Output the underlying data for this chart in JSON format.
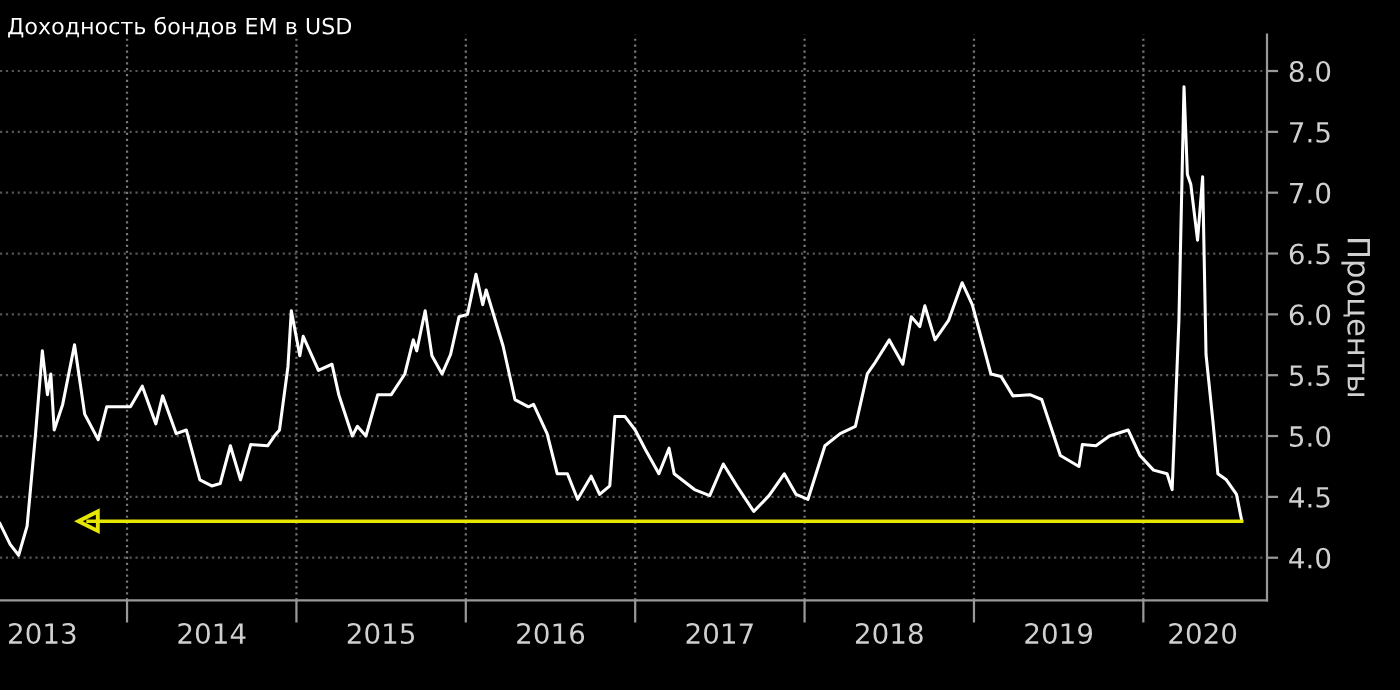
{
  "chart_data": {
    "type": "line",
    "title": "Доходность бондов EM в USD",
    "ylabel": "Проценты",
    "xlim": [
      2013.25,
      2020.73
    ],
    "ylim": [
      3.65,
      8.3
    ],
    "xticks": [
      {
        "value": 2013.5,
        "label": "2013"
      },
      {
        "value": 2014,
        "label": null
      },
      {
        "value": 2014.5,
        "label": "2014"
      },
      {
        "value": 2015,
        "label": null
      },
      {
        "value": 2015.5,
        "label": "2015"
      },
      {
        "value": 2016,
        "label": null
      },
      {
        "value": 2016.5,
        "label": "2016"
      },
      {
        "value": 2017,
        "label": null
      },
      {
        "value": 2017.5,
        "label": "2017"
      },
      {
        "value": 2018,
        "label": null
      },
      {
        "value": 2018.5,
        "label": "2018"
      },
      {
        "value": 2019,
        "label": null
      },
      {
        "value": 2019.5,
        "label": "2019"
      },
      {
        "value": 2020,
        "label": null
      },
      {
        "value": 2020.35,
        "label": "2020"
      }
    ],
    "yticks": [
      {
        "value": 4,
        "label": "4.0"
      },
      {
        "value": 4.5,
        "label": "4.5"
      },
      {
        "value": 5,
        "label": "5.0"
      },
      {
        "value": 5.5,
        "label": "5.5"
      },
      {
        "value": 6,
        "label": "6.0"
      },
      {
        "value": 6.5,
        "label": "6.5"
      },
      {
        "value": 7,
        "label": "7.0"
      },
      {
        "value": 7.5,
        "label": "7.5"
      },
      {
        "value": 8,
        "label": "8.0"
      }
    ],
    "grid": true,
    "series": [
      {
        "color": "#ffffff",
        "x": [
          2013.25,
          2013.31,
          2013.36,
          2013.41,
          2013.46,
          2013.5,
          2013.53,
          2013.55,
          2013.57,
          2013.62,
          2013.69,
          2013.75,
          2013.83,
          2013.88,
          2014.02,
          2014.09,
          2014.17,
          2014.21,
          2014.29,
          2014.35,
          2014.43,
          2014.5,
          2014.55,
          2014.61,
          2014.67,
          2014.73,
          2014.83,
          2014.87,
          2014.9,
          2014.95,
          2014.97,
          2015.02,
          2015.04,
          2015.13,
          2015.21,
          2015.25,
          2015.33,
          2015.36,
          2015.41,
          2015.48,
          2015.56,
          2015.64,
          2015.69,
          2015.71,
          2015.76,
          2015.8,
          2015.86,
          2015.91,
          2015.96,
          2016.01,
          2016.06,
          2016.1,
          2016.12,
          2016.22,
          2016.29,
          2016.37,
          2016.4,
          2016.48,
          2016.54,
          2016.6,
          2016.66,
          2016.74,
          2016.79,
          2016.85,
          2016.88,
          2016.94,
          2017.0,
          2017.06,
          2017.14,
          2017.2,
          2017.23,
          2017.35,
          2017.44,
          2017.52,
          2017.6,
          2017.7,
          2017.79,
          2017.88,
          2017.95,
          2018.02,
          2018.12,
          2018.21,
          2018.3,
          2018.37,
          2018.41,
          2018.5,
          2018.58,
          2018.63,
          2018.68,
          2018.71,
          2018.77,
          2018.85,
          2018.93,
          2018.99,
          2019.1,
          2019.16,
          2019.23,
          2019.33,
          2019.4,
          2019.51,
          2019.62,
          2019.64,
          2019.72,
          2019.8,
          2019.91,
          2019.98,
          2020.06,
          2020.14,
          2020.17,
          2020.21,
          2020.24,
          2020.26,
          2020.28,
          2020.32,
          2020.35,
          2020.37,
          2020.41,
          2020.44,
          2020.49,
          2020.55,
          2020.58
        ],
        "values": [
          4.28,
          4.11,
          4.02,
          4.26,
          5.02,
          5.7,
          5.34,
          5.51,
          5.05,
          5.26,
          5.75,
          5.18,
          4.97,
          5.24,
          5.24,
          5.41,
          5.1,
          5.33,
          5.02,
          5.05,
          4.64,
          4.59,
          4.61,
          4.92,
          4.64,
          4.93,
          4.92,
          5.0,
          5.05,
          5.57,
          6.03,
          5.66,
          5.82,
          5.54,
          5.59,
          5.34,
          5.0,
          5.08,
          5.0,
          5.34,
          5.34,
          5.51,
          5.79,
          5.7,
          6.03,
          5.66,
          5.51,
          5.67,
          5.98,
          6.0,
          6.33,
          6.08,
          6.2,
          5.74,
          5.3,
          5.24,
          5.26,
          5.02,
          4.69,
          4.69,
          4.48,
          4.67,
          4.52,
          4.59,
          5.16,
          5.16,
          5.05,
          4.89,
          4.69,
          4.9,
          4.69,
          4.56,
          4.51,
          4.77,
          4.59,
          4.38,
          4.51,
          4.69,
          4.52,
          4.48,
          4.92,
          5.02,
          5.08,
          5.51,
          5.59,
          5.79,
          5.59,
          5.98,
          5.9,
          6.07,
          5.79,
          5.95,
          6.26,
          6.08,
          5.51,
          5.49,
          5.33,
          5.34,
          5.3,
          4.84,
          4.75,
          4.93,
          4.92,
          5.0,
          5.05,
          4.84,
          4.72,
          4.69,
          4.56,
          5.95,
          7.87,
          7.15,
          7.07,
          6.61,
          7.13,
          5.67,
          5.13,
          4.69,
          4.64,
          4.52,
          4.31
        ]
      },
      {
        "color": "#e6e600",
        "marker": "triangle",
        "x": [
          2013.77,
          2020.58
        ],
        "values": [
          4.3,
          4.3
        ]
      }
    ]
  }
}
